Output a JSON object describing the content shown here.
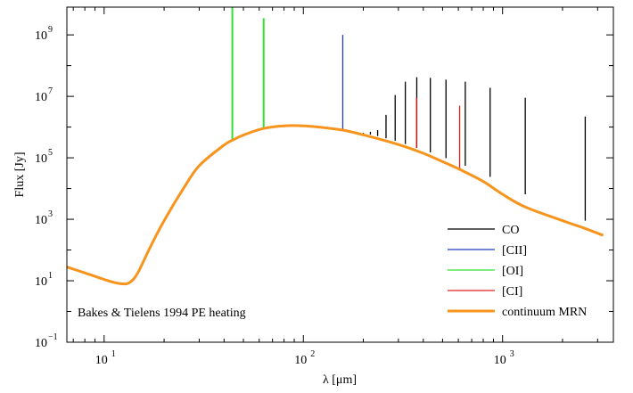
{
  "chart_data": {
    "type": "line",
    "title": "",
    "xlabel": "λ [μm]",
    "ylabel": "Flux [Jy]",
    "annotation": "Bakes & Tielens 1994 PE heating",
    "x_scale": "log",
    "y_scale": "log",
    "xlim": [
      6.5,
      3600
    ],
    "ylim": [
      0.1,
      8000000000.0
    ],
    "grid": false,
    "legend_position": "bottom-right",
    "x_ticks": [
      {
        "value": 10,
        "base": "10",
        "exp": "1"
      },
      {
        "value": 100,
        "base": "10",
        "exp": "2"
      },
      {
        "value": 1000,
        "base": "10",
        "exp": "3"
      }
    ],
    "y_ticks": [
      {
        "value": 0.1,
        "base": "10",
        "exp": "−1"
      },
      {
        "value": 10,
        "base": "10",
        "exp": "1"
      },
      {
        "value": 1000,
        "base": "10",
        "exp": "3"
      },
      {
        "value": 100000,
        "base": "10",
        "exp": "5"
      },
      {
        "value": 10000000,
        "base": "10",
        "exp": "7"
      },
      {
        "value": 1000000000,
        "base": "10",
        "exp": "9"
      }
    ],
    "series": [
      {
        "name": "continuum MRN",
        "kind": "curve",
        "color": "#f7941d",
        "x": [
          6.5,
          8,
          10,
          11.5,
          13,
          14,
          15,
          17,
          20,
          25,
          30,
          40,
          45,
          50,
          63,
          80,
          100,
          120,
          157,
          200,
          300,
          400,
          500,
          610,
          800,
          1000,
          1300,
          2000,
          2600,
          3200
        ],
        "y": [
          28,
          18,
          11,
          8.5,
          8,
          11,
          22,
          120,
          900,
          10000,
          55000,
          260000,
          400000,
          550000,
          900000,
          1100000,
          1100000,
          1000000,
          800000,
          560000,
          270000,
          140000,
          75000,
          42000,
          17000,
          6500,
          2500,
          900,
          500,
          300
        ]
      },
      {
        "name": "CO",
        "kind": "lines",
        "color": "#000000",
        "x": [
          186,
          200,
          217,
          236,
          260,
          289,
          325,
          371,
          434,
          520,
          650,
          866,
          1300,
          2600
        ],
        "base": [
          650000,
          620000,
          570000,
          510000,
          430000,
          360000,
          280000,
          210000,
          150000,
          98000,
          55000,
          24000,
          6500,
          900
        ],
        "peak": [
          700000,
          650000,
          700000,
          800000,
          2500000,
          11000000,
          30000000,
          42000000,
          40000000,
          35000000,
          30000000,
          19000000,
          9000000,
          2200000
        ]
      },
      {
        "name": "[CII]",
        "kind": "lines",
        "color": "#1f3fbf",
        "x": [
          157.7
        ],
        "base": [
          850000
        ],
        "peak": [
          1000000000
        ]
      },
      {
        "name": "[OI]",
        "kind": "lines",
        "color": "#33e033",
        "x": [
          44,
          63.2
        ],
        "base": [
          400000,
          880000
        ],
        "peak": [
          8000000000,
          3500000000
        ]
      },
      {
        "name": "[CI]",
        "kind": "lines",
        "color": "#e02020",
        "x": [
          370,
          609
        ],
        "base": [
          210000,
          45000
        ],
        "peak": [
          9000000,
          5000000
        ]
      }
    ]
  }
}
